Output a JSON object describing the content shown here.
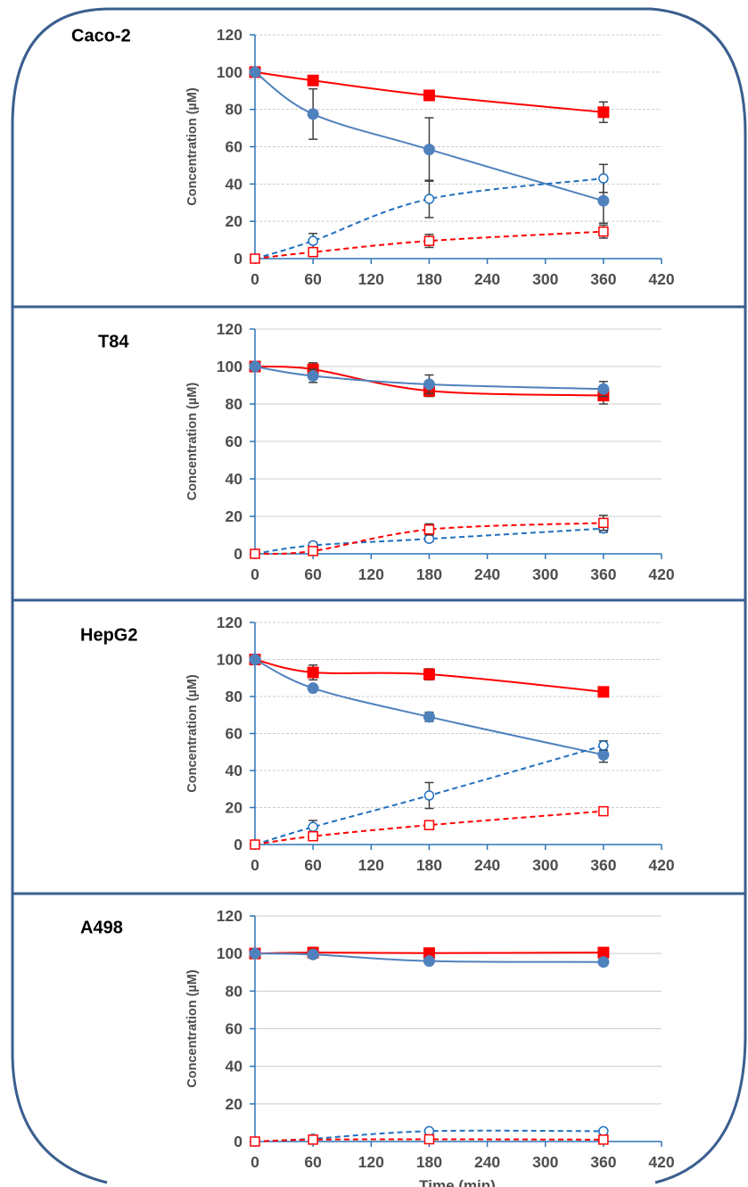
{
  "colors": {
    "red": "#ff0000",
    "blue": "#4f81bd",
    "dashed_blue": "#1f6fbf",
    "frame": "#3a5f8f",
    "axis": "#2e75b6",
    "grid": "#cccccc",
    "errorbar": "#404040",
    "text": "#4d4d4d"
  },
  "chart_data": [
    {
      "type": "line",
      "panel_label": "Caco-2",
      "ylabel": "Concentration (µM)",
      "xlabel": "",
      "xlim": [
        0,
        420
      ],
      "ylim": [
        0,
        120
      ],
      "xticks": [
        "0",
        "60",
        "120",
        "180",
        "240",
        "300",
        "360",
        "420"
      ],
      "yticks": [
        "0",
        "20",
        "40",
        "60",
        "80",
        "100",
        "120"
      ],
      "grid": "horizontal dashed",
      "series": [
        {
          "style": "red-solid-square",
          "x": [
            0,
            60,
            180,
            360
          ],
          "y": [
            100,
            95.5,
            87.5,
            78.5
          ],
          "err": [
            0,
            1.5,
            2,
            5.5
          ]
        },
        {
          "style": "blue-solid-circle",
          "x": [
            0,
            60,
            180,
            360
          ],
          "y": [
            100,
            77.5,
            58.5,
            31
          ],
          "err": [
            0,
            13.5,
            17,
            12
          ]
        },
        {
          "style": "blue-dashed-open-circle",
          "x": [
            0,
            60,
            180,
            360
          ],
          "y": [
            0,
            9.5,
            32,
            43
          ],
          "err": [
            0,
            4,
            10,
            7.5
          ]
        },
        {
          "style": "red-dashed-open-square",
          "x": [
            0,
            60,
            180,
            360
          ],
          "y": [
            0,
            3.5,
            9.5,
            14.5
          ],
          "err": [
            0,
            1.5,
            3.5,
            3.5
          ]
        }
      ]
    },
    {
      "type": "line",
      "panel_label": "T84",
      "ylabel": "Concentration (µM)",
      "xlabel": "",
      "xlim": [
        0,
        420
      ],
      "ylim": [
        0,
        120
      ],
      "xticks": [
        "0",
        "60",
        "120",
        "180",
        "240",
        "300",
        "360",
        "420"
      ],
      "yticks": [
        "0",
        "20",
        "40",
        "60",
        "80",
        "100",
        "120"
      ],
      "grid": "horizontal solid",
      "series": [
        {
          "style": "red-solid-square",
          "x": [
            0,
            60,
            180,
            360
          ],
          "y": [
            100,
            98.5,
            87,
            84.5
          ],
          "err": [
            0,
            3.5,
            3,
            4.5
          ]
        },
        {
          "style": "blue-solid-circle",
          "x": [
            0,
            60,
            180,
            360
          ],
          "y": [
            100,
            95,
            90.5,
            88
          ],
          "err": [
            0,
            3.5,
            5,
            4
          ]
        },
        {
          "style": "blue-dashed-open-circle",
          "x": [
            0,
            60,
            180,
            360
          ],
          "y": [
            0,
            4.5,
            8,
            13.5
          ],
          "err": [
            0,
            1.5,
            1.5,
            2
          ]
        },
        {
          "style": "red-dashed-open-square",
          "x": [
            0,
            60,
            180,
            360
          ],
          "y": [
            0,
            1.5,
            13,
            16.5
          ],
          "err": [
            0,
            1,
            3,
            4
          ]
        }
      ]
    },
    {
      "type": "line",
      "panel_label": "HepG2",
      "ylabel": "Concentration (µM)",
      "xlabel": "",
      "xlim": [
        0,
        420
      ],
      "ylim": [
        0,
        120
      ],
      "xticks": [
        "0",
        "60",
        "120",
        "180",
        "240",
        "300",
        "360",
        "420"
      ],
      "yticks": [
        "0",
        "20",
        "40",
        "60",
        "80",
        "100",
        "120"
      ],
      "grid": "horizontal dashed",
      "series": [
        {
          "style": "red-solid-square",
          "x": [
            0,
            60,
            180,
            360
          ],
          "y": [
            100,
            93,
            92,
            82.5
          ],
          "err": [
            0,
            4,
            3,
            1.5
          ]
        },
        {
          "style": "blue-solid-circle",
          "x": [
            0,
            60,
            180,
            360
          ],
          "y": [
            100,
            84.5,
            69,
            48.5
          ],
          "err": [
            0,
            1.5,
            2.5,
            4
          ]
        },
        {
          "style": "blue-dashed-open-circle",
          "x": [
            0,
            60,
            180,
            360
          ],
          "y": [
            0,
            9.5,
            26.5,
            53.5
          ],
          "err": [
            0,
            3.5,
            7,
            2.5
          ]
        },
        {
          "style": "red-dashed-open-square",
          "x": [
            0,
            60,
            180,
            360
          ],
          "y": [
            0,
            4.5,
            10.5,
            18
          ],
          "err": [
            0,
            2,
            2,
            2
          ]
        }
      ]
    },
    {
      "type": "line",
      "panel_label": "A498",
      "ylabel": "Concentration (µM)",
      "xlabel": "Time (min)",
      "xlim": [
        0,
        420
      ],
      "ylim": [
        0,
        120
      ],
      "xticks": [
        "0",
        "60",
        "120",
        "180",
        "240",
        "300",
        "360",
        "420"
      ],
      "yticks": [
        "0",
        "20",
        "40",
        "60",
        "80",
        "100",
        "120"
      ],
      "grid": "horizontal solid",
      "series": [
        {
          "style": "red-solid-square",
          "x": [
            0,
            60,
            180,
            360
          ],
          "y": [
            100,
            100.5,
            100.2,
            100.5
          ],
          "err": [
            0,
            1,
            1,
            1
          ]
        },
        {
          "style": "blue-solid-circle",
          "x": [
            0,
            60,
            180,
            360
          ],
          "y": [
            100,
            99.5,
            96,
            95.5
          ],
          "err": [
            0,
            1,
            1,
            1
          ]
        },
        {
          "style": "blue-dashed-open-circle",
          "x": [
            0,
            60,
            180,
            360
          ],
          "y": [
            0,
            1.5,
            5.5,
            5.5
          ],
          "err": [
            0,
            1,
            1,
            1
          ]
        },
        {
          "style": "red-dashed-open-square",
          "x": [
            0,
            60,
            180,
            360
          ],
          "y": [
            0,
            1,
            1.2,
            1
          ],
          "err": [
            0,
            1,
            1,
            1
          ]
        }
      ]
    }
  ]
}
